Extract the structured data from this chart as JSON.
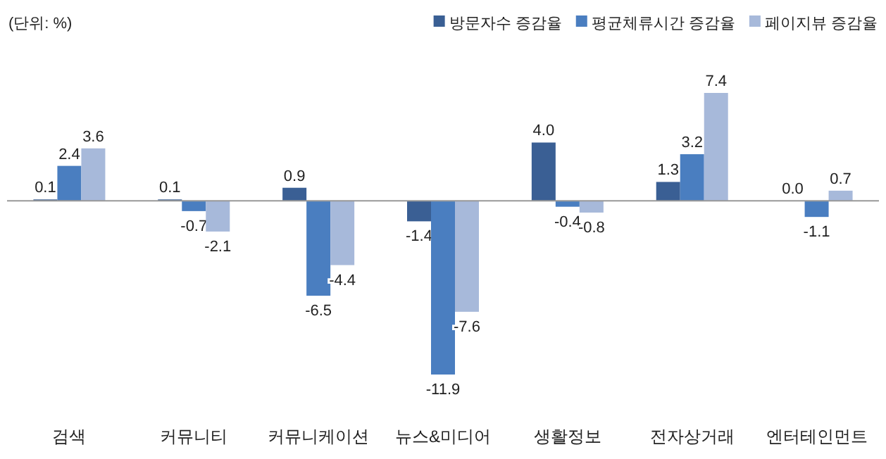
{
  "chart_data": {
    "type": "bar",
    "categories": [
      "검색",
      "커뮤니티",
      "커뮤니케이션",
      "뉴스&미디어",
      "생활정보",
      "전자상거래",
      "엔터테인먼트"
    ],
    "series": [
      {
        "name": "방문자수 증감율",
        "color": "#3a5f94",
        "values": [
          0.1,
          0.1,
          0.9,
          -1.4,
          4.0,
          1.3,
          0.0
        ],
        "value_labels": [
          "0.1",
          "0.1",
          "0.9",
          "-1.4",
          "4.0",
          "1.3",
          "0.0"
        ]
      },
      {
        "name": "평균체류시간 증감율",
        "color": "#4a7ec0",
        "values": [
          2.4,
          -0.7,
          -6.5,
          -11.9,
          -0.4,
          3.2,
          -1.1
        ],
        "value_labels": [
          "2.4",
          "-0.7",
          "-6.5",
          "-11.9",
          "-0.4",
          "3.2",
          "-1.1"
        ]
      },
      {
        "name": "페이지뷰 증감율",
        "color": "#a7b9da",
        "values": [
          3.6,
          -2.1,
          -4.4,
          -7.6,
          -0.8,
          7.4,
          0.7
        ],
        "value_labels": [
          "3.6",
          "-2.1",
          "-4.4",
          "-7.6",
          "-0.8",
          "7.4",
          "0.7"
        ]
      }
    ],
    "legend": "top right",
    "annotations": [
      "(단위: %)"
    ]
  }
}
